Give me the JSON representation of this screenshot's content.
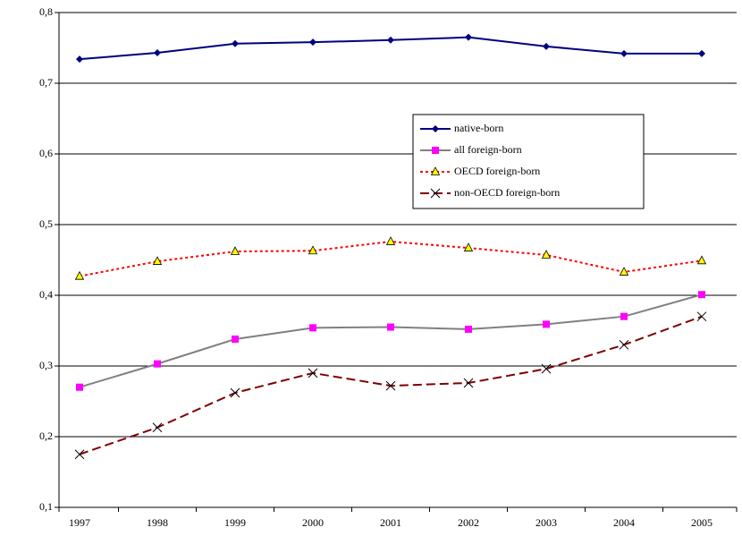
{
  "chart_data": {
    "type": "line",
    "categories": [
      "1997",
      "1998",
      "1999",
      "2000",
      "2001",
      "2002",
      "2003",
      "2004",
      "2005"
    ],
    "ylim": [
      0.1,
      0.8
    ],
    "yticks": [
      {
        "value": 0.1,
        "label": "0,1"
      },
      {
        "value": 0.2,
        "label": "0,2"
      },
      {
        "value": 0.3,
        "label": "0,3"
      },
      {
        "value": 0.4,
        "label": "0,4"
      },
      {
        "value": 0.5,
        "label": "0,5"
      },
      {
        "value": 0.6,
        "label": "0,6"
      },
      {
        "value": 0.7,
        "label": "0,7"
      },
      {
        "value": 0.8,
        "label": "0,8"
      }
    ],
    "grid": true,
    "legend": "upper-right",
    "series": [
      {
        "name": "native-born",
        "color": "#000080",
        "marker": "diamond",
        "marker_color": "#000080",
        "dash": "solid",
        "values": [
          0.734,
          0.743,
          0.756,
          0.758,
          0.761,
          0.765,
          0.752,
          0.742,
          0.742
        ]
      },
      {
        "name": "all foreign-born",
        "color": "#808080",
        "marker": "square",
        "marker_color": "#ff00ff",
        "dash": "solid",
        "values": [
          0.27,
          0.303,
          0.338,
          0.354,
          0.355,
          0.352,
          0.359,
          0.37,
          0.401
        ]
      },
      {
        "name": "OECD foreign-born",
        "color": "#ff0000",
        "marker": "triangle",
        "marker_color": "#ffff00",
        "dash": "dotted",
        "values": [
          0.427,
          0.448,
          0.462,
          0.463,
          0.476,
          0.467,
          0.457,
          0.433,
          0.449
        ]
      },
      {
        "name": "non-OECD foreign-born",
        "color": "#800000",
        "marker": "cross",
        "marker_color": "#000000",
        "dash": "dashed",
        "values": [
          0.175,
          0.213,
          0.262,
          0.29,
          0.272,
          0.276,
          0.296,
          0.33,
          0.37
        ]
      }
    ]
  }
}
